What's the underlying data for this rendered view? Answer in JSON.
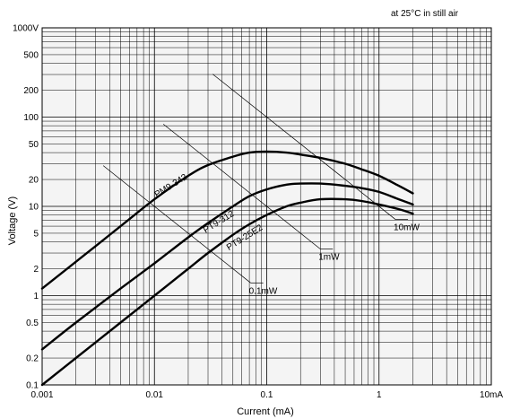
{
  "chart_data": {
    "type": "line",
    "title": "",
    "annotation": "at 25°C in still air",
    "xlabel": "Current (mA)",
    "ylabel": "Voltage (V)",
    "xscale": "log",
    "yscale": "log",
    "xlim": [
      0.001,
      10
    ],
    "ylim": [
      0.1,
      1000
    ],
    "grid": true,
    "x_ticks": [
      {
        "value": 0.001,
        "label": "0.001"
      },
      {
        "value": 0.01,
        "label": "0.01"
      },
      {
        "value": 0.1,
        "label": "0.1"
      },
      {
        "value": 1,
        "label": "1"
      },
      {
        "value": 10,
        "label": "10mA"
      }
    ],
    "y_ticks": [
      {
        "value": 0.1,
        "label": "0.1"
      },
      {
        "value": 0.2,
        "label": "0.2"
      },
      {
        "value": 0.5,
        "label": "0.5"
      },
      {
        "value": 1,
        "label": "1"
      },
      {
        "value": 2,
        "label": "2"
      },
      {
        "value": 5,
        "label": "5"
      },
      {
        "value": 10,
        "label": "10"
      },
      {
        "value": 20,
        "label": "20"
      },
      {
        "value": 50,
        "label": "50"
      },
      {
        "value": 100,
        "label": "100"
      },
      {
        "value": 200,
        "label": "200"
      },
      {
        "value": 500,
        "label": "500"
      },
      {
        "value": 1000,
        "label": "1000V"
      }
    ],
    "series": [
      {
        "name": "PM9-342",
        "x": [
          0.001,
          0.002,
          0.005,
          0.01,
          0.02,
          0.03,
          0.05,
          0.07,
          0.1,
          0.15,
          0.2,
          0.3,
          0.5,
          0.7,
          1,
          1.5,
          2
        ],
        "y": [
          1.2,
          2.4,
          6,
          12,
          22,
          29,
          36,
          40,
          41,
          40,
          38,
          35,
          30,
          26,
          22,
          17,
          14
        ]
      },
      {
        "name": "PT9-312",
        "x": [
          0.001,
          0.002,
          0.005,
          0.01,
          0.02,
          0.03,
          0.05,
          0.07,
          0.1,
          0.15,
          0.2,
          0.3,
          0.5,
          0.7,
          1,
          1.5,
          2
        ],
        "y": [
          0.25,
          0.5,
          1.2,
          2.3,
          4.5,
          6.5,
          10,
          13,
          15.5,
          17.5,
          18,
          18,
          17,
          16,
          14.5,
          12,
          10.5
        ]
      },
      {
        "name": "PT9-25E2",
        "x": [
          0.001,
          0.002,
          0.005,
          0.01,
          0.02,
          0.03,
          0.05,
          0.07,
          0.1,
          0.15,
          0.2,
          0.3,
          0.5,
          0.7,
          1,
          1.5,
          2
        ],
        "y": [
          0.1,
          0.2,
          0.5,
          1.0,
          2.0,
          3.0,
          4.8,
          6.3,
          8,
          10,
          11,
          12,
          12,
          11.5,
          10.5,
          9.3,
          8.3
        ]
      }
    ],
    "power_lines": [
      {
        "label": "0.1mW",
        "x1": 0.0035,
        "x2": 0.072
      },
      {
        "label": "1mW",
        "x1": 0.012,
        "x2": 0.3
      },
      {
        "label": "10mW",
        "x1": 0.033,
        "x2": 1.4
      }
    ]
  }
}
